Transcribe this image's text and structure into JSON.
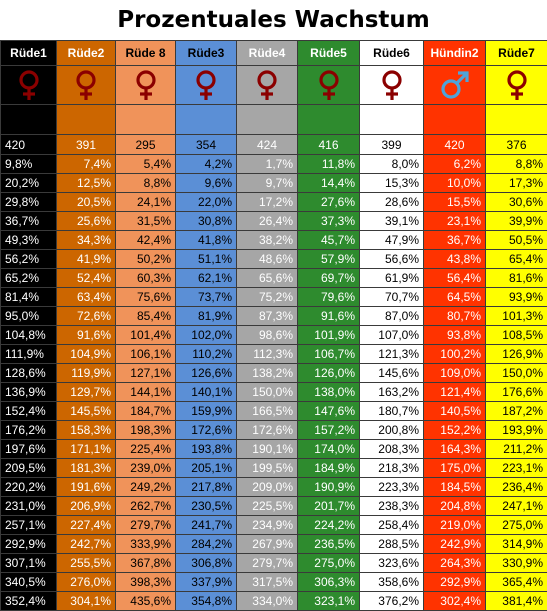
{
  "title": "Prozentuales Wachstum",
  "columns": [
    {
      "name": "Rüde1",
      "symbol": "female-sign-icon",
      "bg": "#000000",
      "fg": "#ffffff",
      "symcolor": "#8b0000",
      "gap": "#000000"
    },
    {
      "name": "Rüde2",
      "symbol": "female-sign-icon",
      "bg": "#cc6600",
      "fg": "#ffffff",
      "symcolor": "#8b0000",
      "gap": "#cc6600"
    },
    {
      "name": "Rüde 8",
      "symbol": "female-sign-icon",
      "bg": "#f0935a",
      "fg": "#000000",
      "symcolor": "#8b0000",
      "gap": "#f0935a"
    },
    {
      "name": "Rüde3",
      "symbol": "female-sign-icon",
      "bg": "#5b8fd6",
      "fg": "#000000",
      "symcolor": "#8b0000",
      "gap": "#5b8fd6"
    },
    {
      "name": "Rüde4",
      "symbol": "female-sign-icon",
      "bg": "#a6a6a6",
      "fg": "#ffffff",
      "symcolor": "#8b0000",
      "gap": "#a6a6a6"
    },
    {
      "name": "Rüde5",
      "symbol": "female-sign-icon",
      "bg": "#2e8b2e",
      "fg": "#ffffff",
      "symcolor": "#8b0000",
      "gap": "#2e8b2e"
    },
    {
      "name": "Rüde6",
      "symbol": "female-sign-icon",
      "bg": "#ffffff",
      "fg": "#000000",
      "symcolor": "#8b0000",
      "gap": "#ffffff"
    },
    {
      "name": "Hündin2",
      "symbol": "male-sign-icon",
      "bg": "#ff3300",
      "fg": "#ffffff",
      "symcolor": "#4fa3d9",
      "gap": "#ff3300"
    },
    {
      "name": "Rüde7",
      "symbol": "female-sign-icon",
      "bg": "#ffff00",
      "fg": "#000000",
      "symcolor": "#8b0000",
      "gap": "#ffff00"
    }
  ],
  "start_values": [
    "420",
    "391",
    "295",
    "354",
    "424",
    "416",
    "399",
    "420",
    "376"
  ],
  "rows": [
    [
      "9,8%",
      "7,4%",
      "5,4%",
      "4,2%",
      "1,7%",
      "11,8%",
      "8,0%",
      "6,2%",
      "8,8%"
    ],
    [
      "20,2%",
      "12,5%",
      "8,8%",
      "9,6%",
      "9,7%",
      "14,4%",
      "15,3%",
      "10,0%",
      "17,3%"
    ],
    [
      "29,8%",
      "20,5%",
      "24,1%",
      "22,0%",
      "17,2%",
      "27,6%",
      "28,6%",
      "15,5%",
      "30,6%"
    ],
    [
      "36,7%",
      "25,6%",
      "31,5%",
      "30,8%",
      "26,4%",
      "37,3%",
      "39,1%",
      "23,1%",
      "39,9%"
    ],
    [
      "49,3%",
      "34,3%",
      "42,4%",
      "41,8%",
      "38,2%",
      "45,7%",
      "47,9%",
      "36,7%",
      "50,5%"
    ],
    [
      "56,2%",
      "41,9%",
      "50,2%",
      "51,1%",
      "48,6%",
      "57,9%",
      "56,6%",
      "43,8%",
      "65,4%"
    ],
    [
      "65,2%",
      "52,4%",
      "60,3%",
      "62,1%",
      "65,6%",
      "69,7%",
      "61,9%",
      "56,4%",
      "81,6%"
    ],
    [
      "81,4%",
      "63,4%",
      "75,6%",
      "73,7%",
      "75,2%",
      "79,6%",
      "70,7%",
      "64,5%",
      "93,9%"
    ],
    [
      "95,0%",
      "72,6%",
      "85,4%",
      "81,9%",
      "87,3%",
      "91,6%",
      "87,0%",
      "80,7%",
      "101,3%"
    ],
    [
      "104,8%",
      "91,6%",
      "101,4%",
      "102,0%",
      "98,6%",
      "101,9%",
      "107,0%",
      "93,8%",
      "108,5%"
    ],
    [
      "111,9%",
      "104,9%",
      "106,1%",
      "110,2%",
      "112,3%",
      "106,7%",
      "121,3%",
      "100,2%",
      "126,9%"
    ],
    [
      "128,6%",
      "119,9%",
      "127,1%",
      "126,6%",
      "138,2%",
      "126,0%",
      "145,6%",
      "109,0%",
      "150,0%"
    ],
    [
      "136,9%",
      "129,7%",
      "144,1%",
      "140,1%",
      "150,0%",
      "138,0%",
      "163,2%",
      "121,4%",
      "176,6%"
    ],
    [
      "152,4%",
      "145,5%",
      "184,7%",
      "159,9%",
      "166,5%",
      "147,6%",
      "180,7%",
      "140,5%",
      "187,2%"
    ],
    [
      "176,2%",
      "158,3%",
      "198,3%",
      "172,6%",
      "172,6%",
      "157,2%",
      "200,8%",
      "152,2%",
      "193,9%"
    ],
    [
      "197,6%",
      "171,1%",
      "225,4%",
      "193,8%",
      "190,1%",
      "174,0%",
      "208,3%",
      "164,3%",
      "211,2%"
    ],
    [
      "209,5%",
      "181,3%",
      "239,0%",
      "205,1%",
      "199,5%",
      "184,9%",
      "218,3%",
      "175,0%",
      "223,1%"
    ],
    [
      "220,2%",
      "191,6%",
      "249,2%",
      "217,8%",
      "209,0%",
      "190,9%",
      "223,3%",
      "184,5%",
      "236,4%"
    ],
    [
      "231,0%",
      "206,9%",
      "262,7%",
      "230,5%",
      "225,5%",
      "201,7%",
      "238,3%",
      "204,8%",
      "247,1%"
    ],
    [
      "257,1%",
      "227,4%",
      "279,7%",
      "241,7%",
      "234,9%",
      "224,2%",
      "258,4%",
      "219,0%",
      "275,0%"
    ],
    [
      "292,9%",
      "242,7%",
      "333,9%",
      "284,2%",
      "267,9%",
      "236,5%",
      "288,5%",
      "242,9%",
      "314,9%"
    ],
    [
      "307,1%",
      "255,5%",
      "367,8%",
      "306,8%",
      "279,7%",
      "275,0%",
      "323,6%",
      "264,3%",
      "330,9%"
    ],
    [
      "340,5%",
      "276,0%",
      "398,3%",
      "337,9%",
      "317,5%",
      "306,3%",
      "358,6%",
      "292,9%",
      "365,4%"
    ],
    [
      "352,4%",
      "304,1%",
      "435,6%",
      "354,8%",
      "334,0%",
      "323,1%",
      "376,2%",
      "302,4%",
      "381,4%"
    ]
  ]
}
